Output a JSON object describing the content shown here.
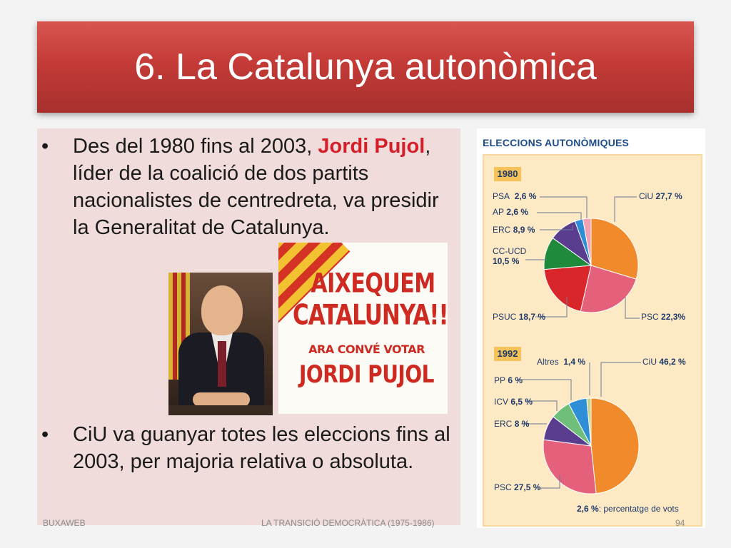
{
  "slide": {
    "title": "6. La Catalunya autonòmica"
  },
  "bullets": [
    {
      "symbol": "•",
      "before": "Des del 1980 fins al 2003, ",
      "highlight": "Jordi Pujol",
      "after": ", líder de la coalició  de dos partits nacionalistes de centredreta, va presidir la Generalitat de Catalunya."
    },
    {
      "symbol": "•",
      "text": "CiU va guanyar totes les eleccions fins al 2003, per majoria relativa o absoluta."
    }
  ],
  "poster": {
    "line1": "AIXEQUEM",
    "line2": "CATALUNYA!!",
    "line3": "ARA CONVÉ VOTAR",
    "line4": "JORDI PUJOL"
  },
  "chart_data": [
    {
      "type": "pie",
      "title": "ELECCIONS AUTONÒMIQUES",
      "subtitle": "1980",
      "slices": [
        {
          "label": "CiU",
          "value": 27.7,
          "display": "27,7 %",
          "color": "#f08a2a"
        },
        {
          "label": "PSC",
          "value": 22.3,
          "display": "22,3%",
          "color": "#e5607a"
        },
        {
          "label": "PSUC",
          "value": 18.7,
          "display": "18,7 %",
          "color": "#d8262a"
        },
        {
          "label": "CC-UCD",
          "value": 10.5,
          "display": "10,5 %",
          "color": "#1f8a3b"
        },
        {
          "label": "ERC",
          "value": 8.9,
          "display": "8,9 %",
          "color": "#5a3d8f"
        },
        {
          "label": "AP",
          "value": 2.6,
          "display": "2,6 %",
          "color": "#2f8fd6"
        },
        {
          "label": "PSA",
          "value": 2.6,
          "display": "2,6 %",
          "color": "#f2a0b0"
        }
      ]
    },
    {
      "type": "pie",
      "subtitle": "1992",
      "slices": [
        {
          "label": "CiU",
          "value": 46.2,
          "display": "46,2 %",
          "color": "#f08a2a"
        },
        {
          "label": "PSC",
          "value": 27.5,
          "display": "27,5 %",
          "color": "#e5607a"
        },
        {
          "label": "ERC",
          "value": 8,
          "display": "8 %",
          "color": "#5a3d8f"
        },
        {
          "label": "ICV",
          "value": 6.5,
          "display": "6,5 %",
          "color": "#6fbf7a"
        },
        {
          "label": "PP",
          "value": 6,
          "display": "6 %",
          "color": "#2f8fd6"
        },
        {
          "label": "Altres",
          "value": 1.4,
          "display": "1,4 %",
          "color": "#c9d28a"
        }
      ]
    }
  ],
  "chart_note": {
    "value": "2,6 %",
    "text": ": percentatge de vots"
  },
  "footer": {
    "left": "BUXAWEB",
    "center": "LA TRANSICIÓ DEMOCRÀTICA (1975-1986)",
    "page": "94"
  }
}
